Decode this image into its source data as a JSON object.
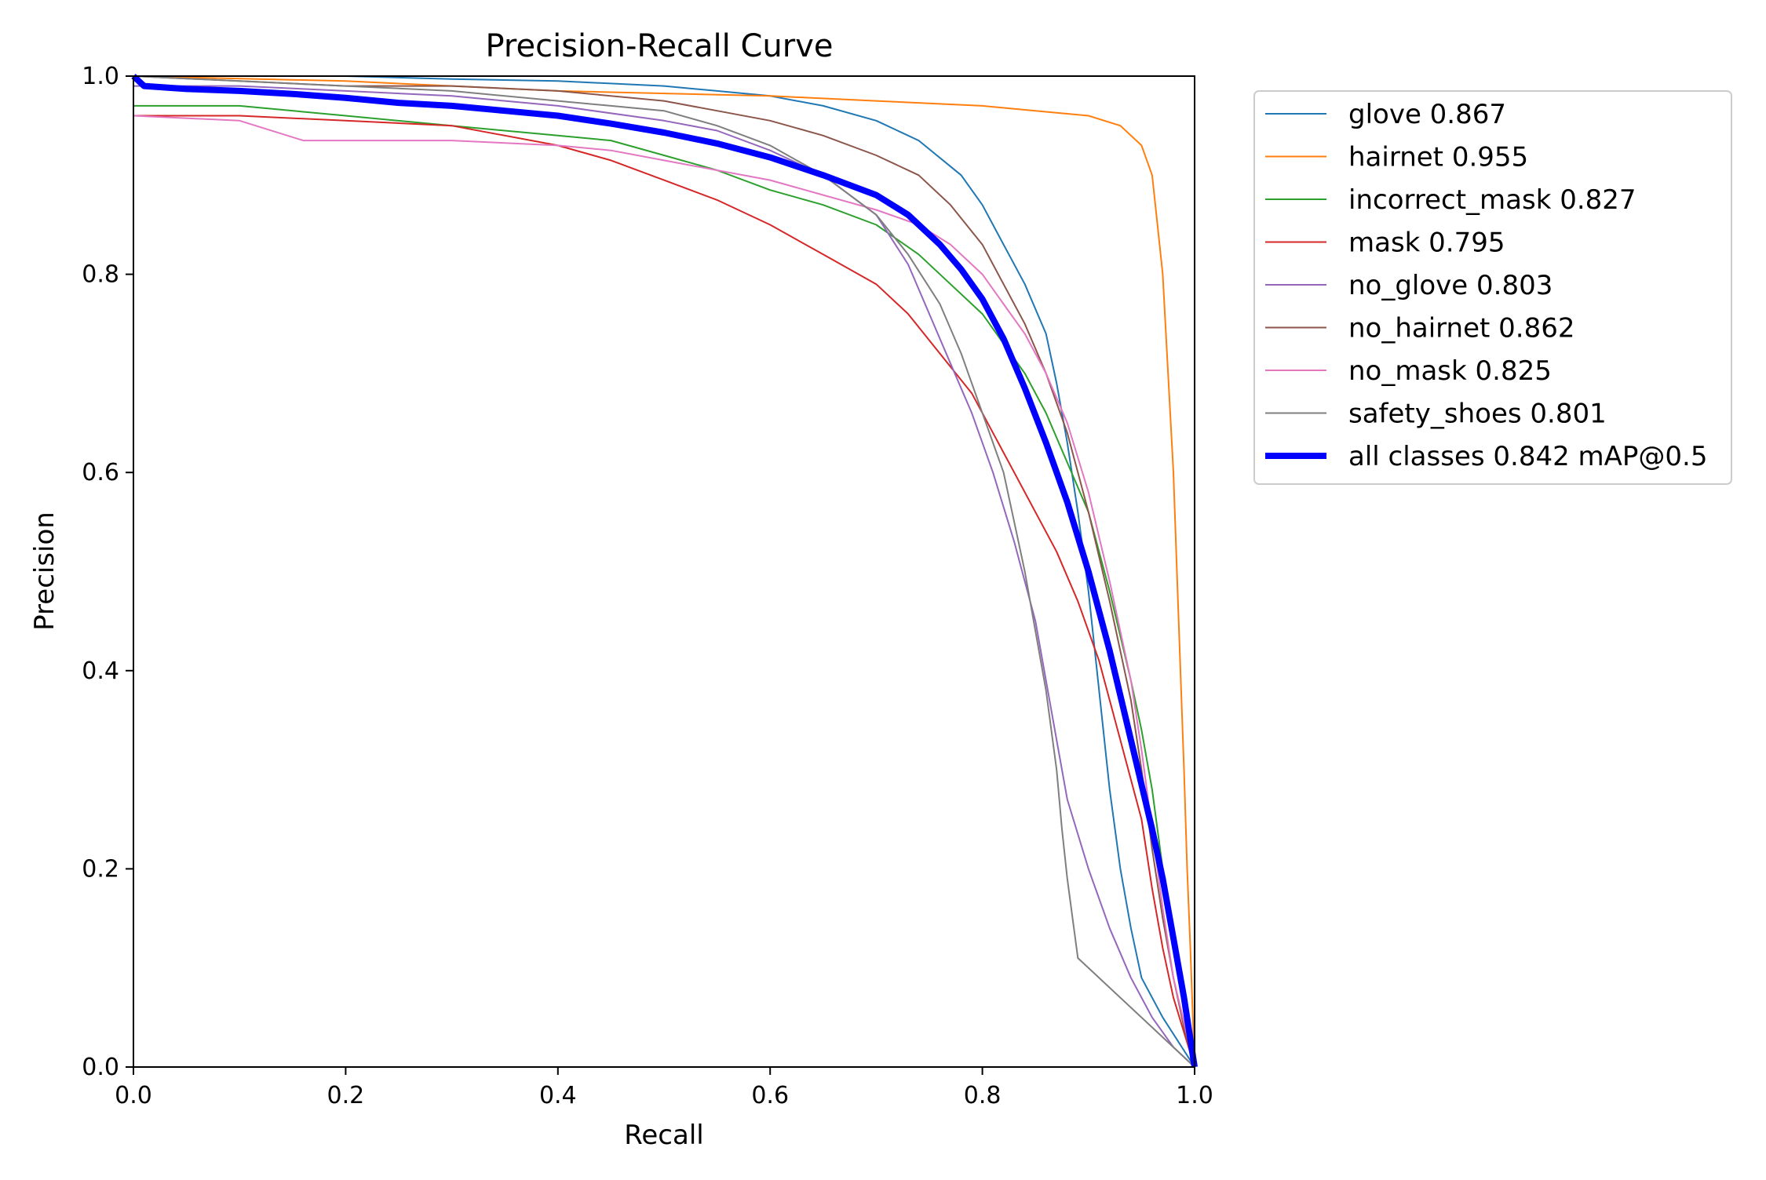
{
  "chart_data": {
    "type": "line",
    "title": "Precision-Recall Curve",
    "xlabel": "Recall",
    "ylabel": "Precision",
    "xlim": [
      0,
      1
    ],
    "ylim": [
      0,
      1
    ],
    "x_ticks": [
      "0.0",
      "0.2",
      "0.4",
      "0.6",
      "0.8",
      "1.0"
    ],
    "y_ticks": [
      "0.0",
      "0.2",
      "0.4",
      "0.6",
      "0.8",
      "1.0"
    ],
    "grid": false,
    "legend_position": "outside-right-top",
    "series": [
      {
        "name": "glove 0.867",
        "color": "#1f77b4",
        "width": 1,
        "points": [
          [
            0,
            1.0
          ],
          [
            0.1,
            1.0
          ],
          [
            0.2,
            1.0
          ],
          [
            0.3,
            0.997
          ],
          [
            0.4,
            0.995
          ],
          [
            0.5,
            0.99
          ],
          [
            0.55,
            0.985
          ],
          [
            0.6,
            0.98
          ],
          [
            0.65,
            0.97
          ],
          [
            0.7,
            0.955
          ],
          [
            0.74,
            0.935
          ],
          [
            0.78,
            0.9
          ],
          [
            0.8,
            0.87
          ],
          [
            0.82,
            0.83
          ],
          [
            0.84,
            0.79
          ],
          [
            0.86,
            0.74
          ],
          [
            0.87,
            0.69
          ],
          [
            0.88,
            0.63
          ],
          [
            0.89,
            0.56
          ],
          [
            0.9,
            0.48
          ],
          [
            0.91,
            0.38
          ],
          [
            0.92,
            0.28
          ],
          [
            0.93,
            0.2
          ],
          [
            0.94,
            0.14
          ],
          [
            0.95,
            0.09
          ],
          [
            0.97,
            0.05
          ],
          [
            1.0,
            0.0
          ]
        ]
      },
      {
        "name": "hairnet 0.955",
        "color": "#ff7f0e",
        "width": 1,
        "points": [
          [
            0,
            1.0
          ],
          [
            0.2,
            0.995
          ],
          [
            0.4,
            0.985
          ],
          [
            0.6,
            0.98
          ],
          [
            0.7,
            0.975
          ],
          [
            0.8,
            0.97
          ],
          [
            0.85,
            0.965
          ],
          [
            0.9,
            0.96
          ],
          [
            0.93,
            0.95
          ],
          [
            0.95,
            0.93
          ],
          [
            0.96,
            0.9
          ],
          [
            0.965,
            0.85
          ],
          [
            0.97,
            0.8
          ],
          [
            0.975,
            0.7
          ],
          [
            0.98,
            0.6
          ],
          [
            0.985,
            0.45
          ],
          [
            0.99,
            0.3
          ],
          [
            0.993,
            0.2
          ],
          [
            0.996,
            0.12
          ],
          [
            1.0,
            0.0
          ]
        ]
      },
      {
        "name": "incorrect_mask 0.827",
        "color": "#2ca02c",
        "width": 1,
        "points": [
          [
            0,
            0.97
          ],
          [
            0.1,
            0.97
          ],
          [
            0.2,
            0.96
          ],
          [
            0.3,
            0.95
          ],
          [
            0.4,
            0.94
          ],
          [
            0.45,
            0.935
          ],
          [
            0.5,
            0.92
          ],
          [
            0.55,
            0.905
          ],
          [
            0.6,
            0.885
          ],
          [
            0.65,
            0.87
          ],
          [
            0.7,
            0.85
          ],
          [
            0.74,
            0.82
          ],
          [
            0.77,
            0.79
          ],
          [
            0.8,
            0.76
          ],
          [
            0.82,
            0.73
          ],
          [
            0.84,
            0.7
          ],
          [
            0.86,
            0.66
          ],
          [
            0.88,
            0.61
          ],
          [
            0.9,
            0.56
          ],
          [
            0.92,
            0.48
          ],
          [
            0.94,
            0.39
          ],
          [
            0.95,
            0.34
          ],
          [
            0.96,
            0.28
          ],
          [
            0.97,
            0.2
          ],
          [
            0.98,
            0.12
          ],
          [
            0.99,
            0.06
          ],
          [
            1.0,
            0.0
          ]
        ]
      },
      {
        "name": "mask 0.795",
        "color": "#d62728",
        "width": 1,
        "points": [
          [
            0,
            0.96
          ],
          [
            0.1,
            0.96
          ],
          [
            0.2,
            0.955
          ],
          [
            0.3,
            0.95
          ],
          [
            0.4,
            0.93
          ],
          [
            0.45,
            0.915
          ],
          [
            0.5,
            0.895
          ],
          [
            0.55,
            0.875
          ],
          [
            0.6,
            0.85
          ],
          [
            0.65,
            0.82
          ],
          [
            0.7,
            0.79
          ],
          [
            0.73,
            0.76
          ],
          [
            0.76,
            0.72
          ],
          [
            0.79,
            0.68
          ],
          [
            0.81,
            0.64
          ],
          [
            0.83,
            0.6
          ],
          [
            0.85,
            0.56
          ],
          [
            0.87,
            0.52
          ],
          [
            0.89,
            0.47
          ],
          [
            0.91,
            0.41
          ],
          [
            0.93,
            0.33
          ],
          [
            0.95,
            0.25
          ],
          [
            0.96,
            0.18
          ],
          [
            0.97,
            0.12
          ],
          [
            0.98,
            0.07
          ],
          [
            1.0,
            0.0
          ]
        ]
      },
      {
        "name": "no_glove 0.803",
        "color": "#9467bd",
        "width": 1,
        "points": [
          [
            0,
            0.99
          ],
          [
            0.1,
            0.99
          ],
          [
            0.2,
            0.985
          ],
          [
            0.3,
            0.98
          ],
          [
            0.4,
            0.97
          ],
          [
            0.5,
            0.955
          ],
          [
            0.55,
            0.945
          ],
          [
            0.6,
            0.925
          ],
          [
            0.65,
            0.9
          ],
          [
            0.7,
            0.86
          ],
          [
            0.73,
            0.81
          ],
          [
            0.75,
            0.76
          ],
          [
            0.77,
            0.71
          ],
          [
            0.79,
            0.66
          ],
          [
            0.81,
            0.6
          ],
          [
            0.83,
            0.53
          ],
          [
            0.85,
            0.45
          ],
          [
            0.86,
            0.39
          ],
          [
            0.87,
            0.33
          ],
          [
            0.88,
            0.27
          ],
          [
            0.9,
            0.2
          ],
          [
            0.92,
            0.14
          ],
          [
            0.94,
            0.09
          ],
          [
            0.96,
            0.05
          ],
          [
            0.98,
            0.02
          ],
          [
            1.0,
            0.0
          ]
        ]
      },
      {
        "name": "no_hairnet 0.862",
        "color": "#8c564b",
        "width": 1,
        "points": [
          [
            0,
            1.0
          ],
          [
            0.1,
            0.995
          ],
          [
            0.2,
            0.99
          ],
          [
            0.3,
            0.99
          ],
          [
            0.4,
            0.985
          ],
          [
            0.5,
            0.975
          ],
          [
            0.55,
            0.965
          ],
          [
            0.6,
            0.955
          ],
          [
            0.65,
            0.94
          ],
          [
            0.7,
            0.92
          ],
          [
            0.74,
            0.9
          ],
          [
            0.77,
            0.87
          ],
          [
            0.8,
            0.83
          ],
          [
            0.82,
            0.79
          ],
          [
            0.84,
            0.75
          ],
          [
            0.86,
            0.7
          ],
          [
            0.88,
            0.64
          ],
          [
            0.9,
            0.56
          ],
          [
            0.92,
            0.47
          ],
          [
            0.94,
            0.37
          ],
          [
            0.95,
            0.3
          ],
          [
            0.96,
            0.22
          ],
          [
            0.97,
            0.15
          ],
          [
            0.98,
            0.09
          ],
          [
            0.99,
            0.04
          ],
          [
            1.0,
            0.0
          ]
        ]
      },
      {
        "name": "no_mask 0.825",
        "color": "#e377c2",
        "width": 1,
        "points": [
          [
            0,
            0.96
          ],
          [
            0.1,
            0.955
          ],
          [
            0.16,
            0.935
          ],
          [
            0.2,
            0.935
          ],
          [
            0.3,
            0.935
          ],
          [
            0.4,
            0.93
          ],
          [
            0.45,
            0.925
          ],
          [
            0.5,
            0.915
          ],
          [
            0.55,
            0.905
          ],
          [
            0.6,
            0.895
          ],
          [
            0.65,
            0.88
          ],
          [
            0.7,
            0.865
          ],
          [
            0.74,
            0.85
          ],
          [
            0.77,
            0.83
          ],
          [
            0.8,
            0.8
          ],
          [
            0.82,
            0.77
          ],
          [
            0.84,
            0.74
          ],
          [
            0.86,
            0.7
          ],
          [
            0.88,
            0.65
          ],
          [
            0.9,
            0.58
          ],
          [
            0.92,
            0.49
          ],
          [
            0.94,
            0.39
          ],
          [
            0.95,
            0.32
          ],
          [
            0.96,
            0.24
          ],
          [
            0.97,
            0.16
          ],
          [
            0.98,
            0.09
          ],
          [
            1.0,
            0.0
          ]
        ]
      },
      {
        "name": "safety_shoes 0.801",
        "color": "#7f7f7f",
        "width": 1,
        "points": [
          [
            0,
            1.0
          ],
          [
            0.1,
            0.995
          ],
          [
            0.2,
            0.99
          ],
          [
            0.3,
            0.985
          ],
          [
            0.4,
            0.975
          ],
          [
            0.45,
            0.97
          ],
          [
            0.5,
            0.965
          ],
          [
            0.55,
            0.95
          ],
          [
            0.6,
            0.93
          ],
          [
            0.65,
            0.9
          ],
          [
            0.7,
            0.86
          ],
          [
            0.73,
            0.82
          ],
          [
            0.76,
            0.77
          ],
          [
            0.78,
            0.72
          ],
          [
            0.8,
            0.66
          ],
          [
            0.82,
            0.6
          ],
          [
            0.83,
            0.55
          ],
          [
            0.84,
            0.5
          ],
          [
            0.85,
            0.44
          ],
          [
            0.86,
            0.38
          ],
          [
            0.87,
            0.3
          ],
          [
            0.875,
            0.24
          ],
          [
            0.88,
            0.19
          ],
          [
            0.89,
            0.11
          ],
          [
            1.0,
            0.0
          ]
        ]
      },
      {
        "name": "all classes 0.842 mAP@0.5",
        "color": "#0000ff",
        "width": 4,
        "points": [
          [
            0,
            1.0
          ],
          [
            0.01,
            0.99
          ],
          [
            0.05,
            0.987
          ],
          [
            0.1,
            0.985
          ],
          [
            0.15,
            0.982
          ],
          [
            0.2,
            0.978
          ],
          [
            0.25,
            0.973
          ],
          [
            0.3,
            0.97
          ],
          [
            0.35,
            0.965
          ],
          [
            0.4,
            0.96
          ],
          [
            0.45,
            0.952
          ],
          [
            0.5,
            0.943
          ],
          [
            0.55,
            0.932
          ],
          [
            0.6,
            0.918
          ],
          [
            0.65,
            0.9
          ],
          [
            0.7,
            0.88
          ],
          [
            0.73,
            0.86
          ],
          [
            0.76,
            0.83
          ],
          [
            0.78,
            0.805
          ],
          [
            0.8,
            0.775
          ],
          [
            0.82,
            0.735
          ],
          [
            0.84,
            0.685
          ],
          [
            0.86,
            0.63
          ],
          [
            0.88,
            0.57
          ],
          [
            0.9,
            0.5
          ],
          [
            0.92,
            0.42
          ],
          [
            0.94,
            0.33
          ],
          [
            0.96,
            0.24
          ],
          [
            0.97,
            0.19
          ],
          [
            0.98,
            0.13
          ],
          [
            0.99,
            0.07
          ],
          [
            1.0,
            0.0
          ]
        ]
      }
    ]
  }
}
